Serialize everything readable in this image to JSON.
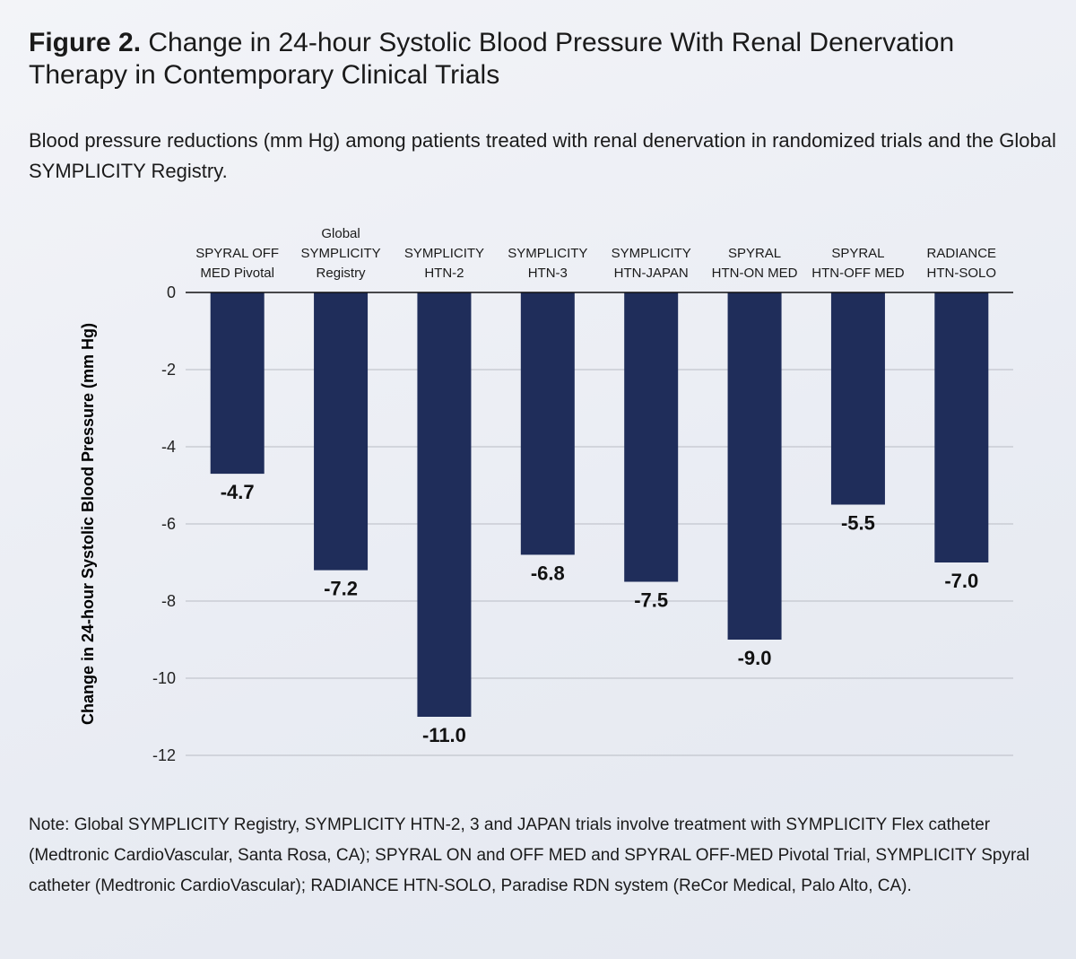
{
  "chart_data": {
    "type": "bar",
    "title_label": "Figure 2.",
    "title": "Change in 24-hour Systolic Blood Pressure With Renal Denervation Therapy in Contemporary Clinical Trials",
    "subtitle": "Blood pressure reductions (mm Hg) among patients treated with renal denervation in randomized trials and the Global SYMPLICITY Registry.",
    "y_label": "Change in 24-hour Systolic Blood Pressure (mm Hg)",
    "categories": [
      "SPYRAL OFF\nMED Pivotal",
      "Global\nSYMPLICITY\nRegistry",
      "SYMPLICITY\nHTN-2",
      "SYMPLICITY\nHTN-3",
      "SYMPLICITY\nHTN-JAPAN",
      "SPYRAL\nHTN-ON MED",
      "SPYRAL\nHTN-OFF MED",
      "RADIANCE\nHTN-SOLO"
    ],
    "values": [
      -4.7,
      -7.2,
      -11,
      -6.8,
      -7.5,
      -9,
      -5.5,
      -7
    ],
    "value_labels": [
      "-4.7",
      "-7.2",
      "-11.0",
      "-6.8",
      "-7.5",
      "-9.0",
      "-5.5",
      "-7.0"
    ],
    "color": "#1f2d5a",
    "ylim": [
      -12,
      0
    ],
    "yticks": [
      0,
      -2,
      -4,
      -6,
      -8,
      -10,
      -12
    ],
    "grid": true,
    "note": "Note: Global SYMPLICITY Registry, SYMPLICITY HTN-2, 3 and JAPAN trials involve treatment with SYMPLICITY Flex catheter (Medtronic CardioVascular, Santa Rosa, CA); SPYRAL ON and OFF MED and SPYRAL OFF-MED Pivotal Trial, SYMPLICITY Spyral catheter (Medtronic CardioVascular); RADIANCE HTN-SOLO, Paradise RDN system (ReCor Medical, Palo Alto, CA)."
  }
}
